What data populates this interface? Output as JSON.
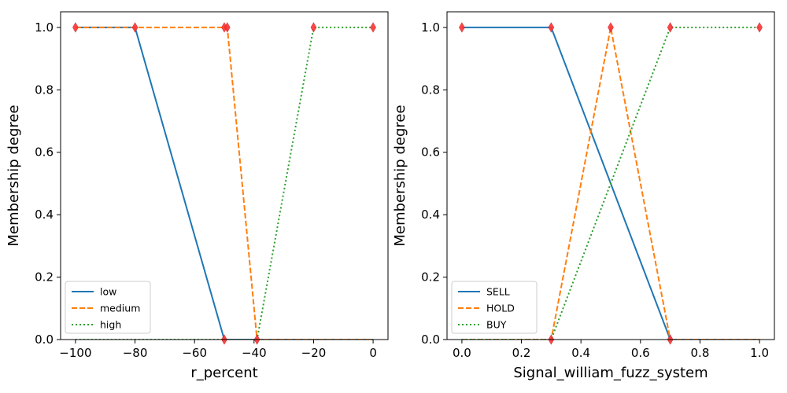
{
  "chart_data": [
    {
      "type": "line",
      "xlabel": "r_percent",
      "ylabel": "Membership degree",
      "xlim": [
        -105,
        5
      ],
      "ylim": [
        0,
        1.05
      ],
      "xticks": [
        -100,
        -80,
        -60,
        -40,
        -20,
        0
      ],
      "xtick_labels": [
        "−100",
        "−80",
        "−60",
        "−40",
        "−20",
        "0"
      ],
      "yticks": [
        0.0,
        0.2,
        0.4,
        0.6,
        0.8,
        1.0
      ],
      "ytick_labels": [
        "0.0",
        "0.2",
        "0.4",
        "0.6",
        "0.8",
        "1.0"
      ],
      "grid": false,
      "legend_position": "lower-left",
      "series": [
        {
          "name": "low",
          "color": "#1f77b4",
          "style": "solid",
          "x": [
            -100,
            -80,
            -50,
            0
          ],
          "y": [
            1,
            1,
            0,
            0
          ]
        },
        {
          "name": "medium",
          "color": "#ff7f0e",
          "style": "dashed",
          "x": [
            -100,
            -50,
            -49,
            -39,
            0
          ],
          "y": [
            1,
            1,
            1,
            0,
            0
          ]
        },
        {
          "name": "high",
          "color": "#2ca02c",
          "style": "dotted",
          "x": [
            -100,
            -39,
            -20,
            0
          ],
          "y": [
            0,
            0,
            1,
            1
          ]
        }
      ],
      "markers": {
        "color": "#ff3333",
        "points": [
          [
            -100,
            1
          ],
          [
            -80,
            1
          ],
          [
            -50,
            1
          ],
          [
            -49,
            1
          ],
          [
            -20,
            1
          ],
          [
            0,
            1
          ],
          [
            -50,
            0
          ],
          [
            -39,
            0
          ]
        ]
      }
    },
    {
      "type": "line",
      "xlabel": "Signal_william_fuzz_system",
      "ylabel": "Membership degree",
      "xlim": [
        -0.05,
        1.05
      ],
      "ylim": [
        0,
        1.05
      ],
      "xticks": [
        0.0,
        0.2,
        0.4,
        0.6,
        0.8,
        1.0
      ],
      "xtick_labels": [
        "0.0",
        "0.2",
        "0.4",
        "0.6",
        "0.8",
        "1.0"
      ],
      "yticks": [
        0.0,
        0.2,
        0.4,
        0.6,
        0.8,
        1.0
      ],
      "ytick_labels": [
        "0.0",
        "0.2",
        "0.4",
        "0.6",
        "0.8",
        "1.0"
      ],
      "grid": false,
      "legend_position": "lower-left",
      "series": [
        {
          "name": "SELL",
          "color": "#1f77b4",
          "style": "solid",
          "x": [
            0,
            0.3,
            0.7,
            1.0
          ],
          "y": [
            1,
            1,
            0,
            0
          ]
        },
        {
          "name": "HOLD",
          "color": "#ff7f0e",
          "style": "dashed",
          "x": [
            0,
            0.3,
            0.5,
            0.7,
            1.0
          ],
          "y": [
            0,
            0,
            1,
            0,
            0
          ]
        },
        {
          "name": "BUY",
          "color": "#2ca02c",
          "style": "dotted",
          "x": [
            0,
            0.3,
            0.7,
            1.0
          ],
          "y": [
            0,
            0,
            1,
            1
          ]
        }
      ],
      "markers": {
        "color": "#ff3333",
        "points": [
          [
            0,
            1
          ],
          [
            0.3,
            1
          ],
          [
            0.5,
            1
          ],
          [
            0.7,
            1
          ],
          [
            1.0,
            1
          ],
          [
            0.3,
            0
          ],
          [
            0.7,
            0
          ]
        ]
      }
    }
  ]
}
